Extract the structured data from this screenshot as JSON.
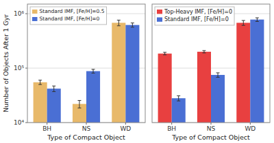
{
  "chart_data": [
    {
      "type": "bar",
      "categories": [
        "BH",
        "NS",
        "WD"
      ],
      "series": [
        {
          "name": "Standard IMF, [Fe/H]=0.5",
          "color": "#E8B96A",
          "values": [
            55000,
            22000,
            680000
          ],
          "errors": [
            5000,
            3500,
            80000
          ]
        },
        {
          "name": "Standard IMF, [Fe/H]=0",
          "color": "#4A6FD4",
          "values": [
            42000,
            88000,
            620000
          ],
          "errors": [
            5000,
            7000,
            55000
          ]
        }
      ],
      "xlabel": "Type of Compact Object",
      "ylabel": "Number of Objects After 1 Gyr",
      "ylim": [
        10000,
        1500000
      ],
      "yticks": [
        {
          "value": 10000,
          "label": "10⁴"
        },
        {
          "value": 100000,
          "label": "10⁵"
        },
        {
          "value": 1000000,
          "label": "10⁶"
        }
      ],
      "log": "y",
      "grid": true,
      "legend": "upper left"
    },
    {
      "type": "bar",
      "categories": [
        "BH",
        "NS",
        "WD"
      ],
      "series": [
        {
          "name": "Top-Heavy IMF, [Fe/H]=0",
          "color": "#E84040",
          "values": [
            185000,
            200000,
            680000
          ],
          "errors": [
            10000,
            10000,
            70000
          ]
        },
        {
          "name": "Standard IMF, [Fe/H]=0",
          "color": "#4A6FD4",
          "values": [
            28000,
            75000,
            780000
          ],
          "errors": [
            3000,
            7000,
            60000
          ]
        }
      ],
      "xlabel": "Type of Compact Object",
      "ylim": [
        10000,
        1500000
      ],
      "yticks": [
        {
          "value": 10000,
          "label": "10⁴"
        },
        {
          "value": 100000,
          "label": "10⁵"
        },
        {
          "value": 1000000,
          "label": "10⁶"
        }
      ],
      "log": "y",
      "grid": true,
      "legend": "upper left",
      "tick_labels": "x"
    }
  ]
}
